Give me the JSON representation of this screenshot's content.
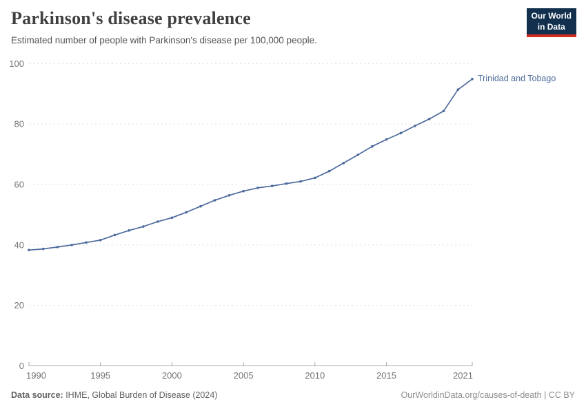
{
  "header": {
    "title": "Parkinson's disease prevalence",
    "subtitle": "Estimated number of people with Parkinson's disease per 100,000 people.",
    "logo": {
      "line1": "Our World",
      "line2": "in Data"
    }
  },
  "colors": {
    "series_blue": "#4c6a9c",
    "logo_background": "#12304e",
    "logo_underline": "#d42b21",
    "gridline": "#dedede",
    "axis": "#a9a9a9",
    "tick_label": "#757575"
  },
  "chart_data": {
    "type": "line",
    "title": "Parkinson's disease prevalence",
    "xlabel": "",
    "ylabel": "Estimated number of people with Parkinson's disease per 100,000 people",
    "xlim": [
      1990,
      2021
    ],
    "ylim": [
      0,
      100
    ],
    "x_ticks": [
      1990,
      1995,
      2000,
      2005,
      2010,
      2015,
      2021
    ],
    "y_ticks": [
      0,
      20,
      40,
      60,
      80,
      100
    ],
    "grid": "horizontal-dashed",
    "legend_position": "end-of-line-label",
    "series": [
      {
        "name": "Trinidad and Tobago",
        "color": "#4c6a9c",
        "x": [
          1990,
          1991,
          1992,
          1993,
          1994,
          1995,
          1996,
          1997,
          1998,
          1999,
          2000,
          2001,
          2002,
          2003,
          2004,
          2005,
          2006,
          2007,
          2008,
          2009,
          2010,
          2011,
          2012,
          2013,
          2014,
          2015,
          2016,
          2017,
          2018,
          2019,
          2020,
          2021
        ],
        "values": [
          38.3,
          38.7,
          39.3,
          40.0,
          40.8,
          41.6,
          43.3,
          44.8,
          46.1,
          47.7,
          49.0,
          50.8,
          52.8,
          54.8,
          56.4,
          57.8,
          58.9,
          59.5,
          60.3,
          61.0,
          62.2,
          64.4,
          67.1,
          69.8,
          72.6,
          74.9,
          77.0,
          79.4,
          81.7,
          84.3,
          91.4,
          94.9
        ]
      }
    ]
  },
  "footer": {
    "datasource_label": "Data source:",
    "datasource_value": " IHME, Global Burden of Disease (2024)",
    "attribution": "OurWorldinData.org/causes-of-death | CC BY"
  }
}
